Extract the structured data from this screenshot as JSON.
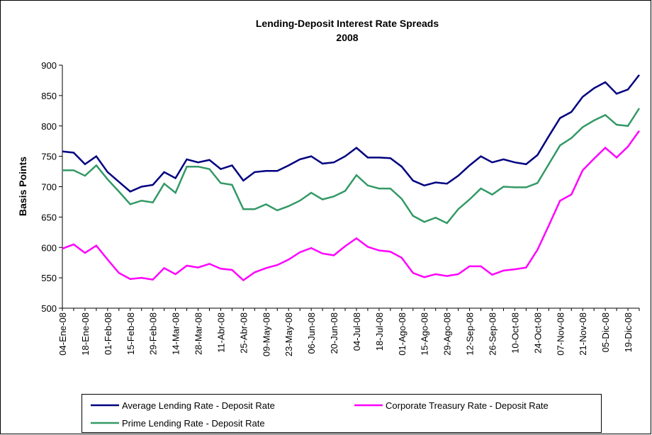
{
  "chart_data": {
    "type": "line",
    "title": "Lending-Deposit Interest Rate Spreads",
    "subtitle": "2008",
    "y_label": "Basis Points",
    "categories": [
      "04-Ene-08",
      null,
      "18-Ene-08",
      null,
      "01-Feb-08",
      null,
      "15-Feb-08",
      null,
      "29-Feb-08",
      null,
      "14-Mar-08",
      null,
      "28-Mar-08",
      null,
      "11-Abr-08",
      null,
      "25-Abr-08",
      null,
      "09-May-08",
      null,
      "23-May-08",
      null,
      "06-Jun-08",
      null,
      "20-Jun-08",
      null,
      "04-Jul-08",
      null,
      "18-Jul-08",
      null,
      "01-Ago-08",
      null,
      "15-Ago-08",
      null,
      "29-Ago-08",
      null,
      "12-Sep-08",
      null,
      "26-Sep-08",
      null,
      "10-Oct-08",
      null,
      "24-Oct-08",
      null,
      "07-Nov-08",
      null,
      "21-Nov-08",
      null,
      "05-Dic-08",
      null,
      "19-Dic-08",
      null
    ],
    "series": [
      {
        "name": "Average Lending Rate - Deposit Rate",
        "color": "#000080",
        "values": [
          758,
          756,
          737,
          750,
          724,
          708,
          692,
          700,
          703,
          724,
          714,
          745,
          740,
          744,
          729,
          735,
          710,
          724,
          726,
          726,
          735,
          745,
          750,
          738,
          740,
          750,
          764,
          748,
          748,
          747,
          733,
          710,
          702,
          707,
          705,
          718,
          735,
          750,
          740,
          745,
          740,
          737,
          752,
          783,
          813,
          823,
          848,
          862,
          872,
          853,
          860,
          884
        ]
      },
      {
        "name": "Corporate Treasury Rate - Deposit Rate",
        "color": "#ff00ff",
        "values": [
          598,
          605,
          591,
          603,
          580,
          558,
          548,
          550,
          547,
          566,
          556,
          570,
          567,
          573,
          565,
          563,
          546,
          559,
          566,
          571,
          580,
          592,
          599,
          590,
          587,
          602,
          615,
          601,
          595,
          593,
          583,
          558,
          551,
          556,
          553,
          556,
          569,
          569,
          555,
          562,
          564,
          567,
          596,
          636,
          677,
          687,
          727,
          746,
          764,
          748,
          766,
          792
        ]
      },
      {
        "name": "Prime Lending Rate - Deposit Rate",
        "color": "#339966",
        "values": [
          727,
          727,
          718,
          735,
          712,
          692,
          671,
          677,
          674,
          705,
          690,
          733,
          733,
          729,
          706,
          703,
          663,
          663,
          671,
          661,
          668,
          677,
          690,
          679,
          684,
          693,
          719,
          702,
          697,
          697,
          680,
          652,
          642,
          649,
          640,
          663,
          679,
          697,
          687,
          700,
          699,
          699,
          706,
          737,
          768,
          780,
          798,
          809,
          818,
          802,
          800,
          829
        ]
      }
    ],
    "ylim": [
      500,
      900
    ],
    "yticks": [
      500,
      550,
      600,
      650,
      700,
      750,
      800,
      850,
      900
    ],
    "grid": false
  }
}
